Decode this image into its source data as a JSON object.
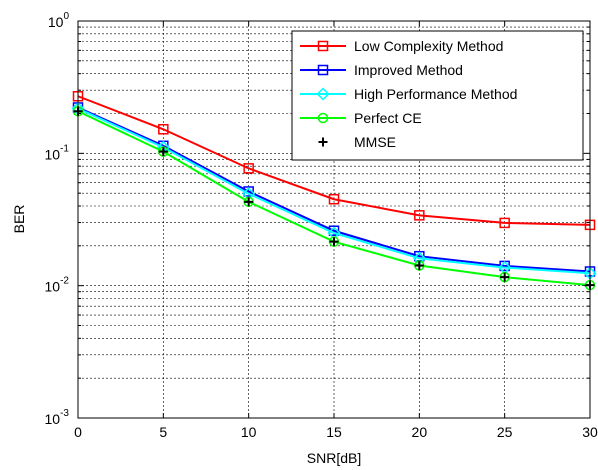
{
  "chart_data": {
    "type": "line",
    "title": "",
    "xlabel": "SNR[dB]",
    "ylabel": "BER",
    "x": [
      0,
      5,
      10,
      15,
      20,
      25,
      30
    ],
    "xlim": [
      0,
      30
    ],
    "ylim": [
      0.001,
      1
    ],
    "yscale": "log",
    "grid": true,
    "x_ticks": [
      "0",
      "5",
      "10",
      "15",
      "20",
      "25",
      "30"
    ],
    "y_ticks": [
      {
        "base": "10",
        "exp": "-3"
      },
      {
        "base": "10",
        "exp": "-2"
      },
      {
        "base": "10",
        "exp": "-1"
      },
      {
        "base": "10",
        "exp": "0"
      }
    ],
    "legend_position": "top-right",
    "series": [
      {
        "name": "Low Complexity Method",
        "color": "#ff0000",
        "marker": "square",
        "values": [
          0.27,
          0.152,
          0.077,
          0.045,
          0.034,
          0.0298,
          0.0288
        ]
      },
      {
        "name": "Improved Method",
        "color": "#0000ff",
        "marker": "square",
        "values": [
          0.222,
          0.114,
          0.0515,
          0.026,
          0.0167,
          0.0141,
          0.0128
        ]
      },
      {
        "name": "High Performance Method",
        "color": "#00ffff",
        "marker": "diamond",
        "values": [
          0.218,
          0.111,
          0.0495,
          0.025,
          0.0161,
          0.0137,
          0.0124
        ]
      },
      {
        "name": "Perfect CE",
        "color": "#00ff00",
        "marker": "circle",
        "values": [
          0.208,
          0.103,
          0.043,
          0.0215,
          0.0142,
          0.0116,
          0.0101
        ]
      },
      {
        "name": "MMSE",
        "color": "#000000",
        "marker": "plus",
        "line": false,
        "values": [
          0.208,
          0.103,
          0.043,
          0.0215,
          0.0142,
          0.0116,
          0.0101
        ]
      }
    ]
  }
}
